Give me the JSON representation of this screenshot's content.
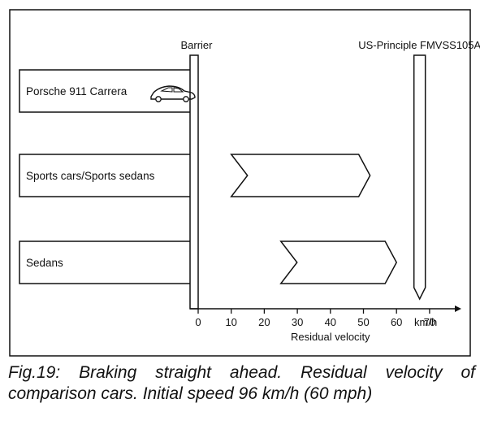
{
  "chart_data": {
    "type": "bar",
    "categories": [
      "Porsche 911 Carrera",
      "Sports cars/Sports sedans",
      "Sedans"
    ],
    "ranges": [
      {
        "category": "Porsche 911 Carrera",
        "from": 0,
        "to": 0
      },
      {
        "category": "Sports cars/Sports sedans",
        "from": 10,
        "to": 52
      },
      {
        "category": "Sedans",
        "from": 25,
        "to": 60
      }
    ],
    "reference_lines": [
      {
        "label": "Barrier",
        "value": 0
      },
      {
        "label": "US-Principle FMVSS105A",
        "value": 67
      }
    ],
    "x_ticks": [
      0,
      10,
      20,
      30,
      40,
      50,
      60,
      70
    ],
    "x_unit": "km/h",
    "xlabel": "Residual velocity",
    "ylabel": "",
    "xlim": [
      -2,
      78
    ],
    "grid": false,
    "legend": "none"
  },
  "caption": "Fig.19: Braking straight ahead. Residual velocity of comparison cars. Initial speed 96 km/h (60 mph)",
  "colors": {
    "ink": "#111111",
    "background": "#ffffff"
  },
  "icons": {
    "porsche_car": "car-icon"
  }
}
